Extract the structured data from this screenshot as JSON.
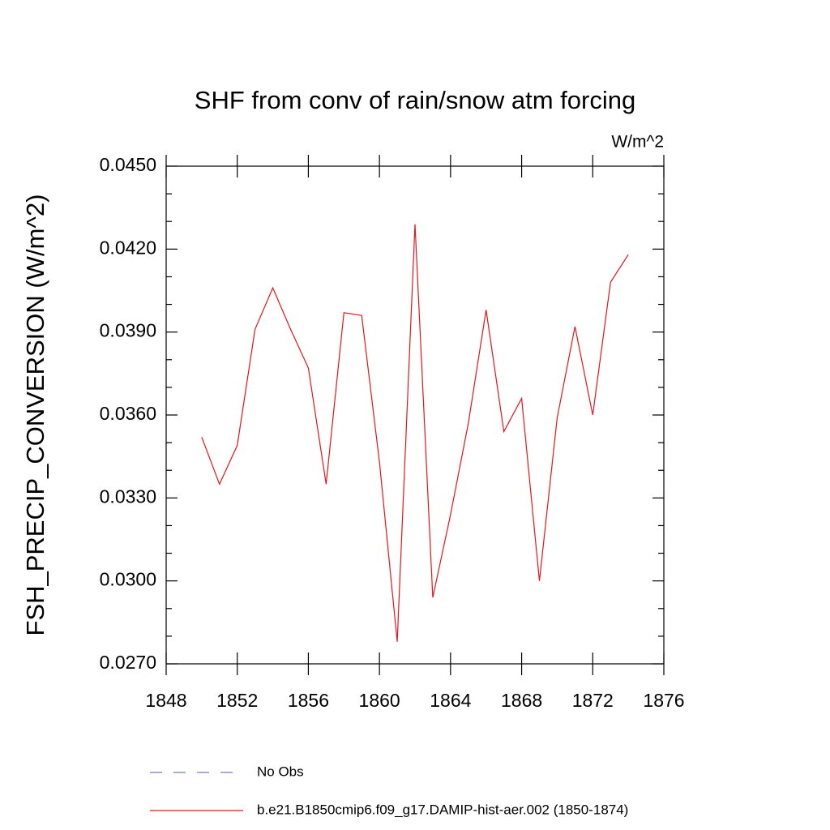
{
  "chart_data": {
    "type": "line",
    "title": "SHF from conv of rain/snow atm forcing",
    "units": "W/m^2",
    "y_label": "FSH_PRECIP_CONVERSION  (W/m^2)",
    "x": [
      1850,
      1851,
      1852,
      1853,
      1854,
      1855,
      1856,
      1857,
      1858,
      1859,
      1860,
      1861,
      1862,
      1863,
      1864,
      1865,
      1866,
      1867,
      1868,
      1869,
      1870,
      1871,
      1872,
      1873,
      1874
    ],
    "series": [
      {
        "name": "b.e21.B1850cmip6.f09_g17.DAMIP-hist-aer.002 (1850-1874)",
        "color": "#e8141c",
        "values": [
          0.0352,
          0.0335,
          0.0349,
          0.0391,
          0.0406,
          0.0391,
          0.0377,
          0.0335,
          0.0397,
          0.0396,
          0.0343,
          0.0278,
          0.0429,
          0.0294,
          0.0324,
          0.0357,
          0.0398,
          0.0354,
          0.0366,
          0.03,
          0.0359,
          0.0392,
          0.036,
          0.0408,
          0.0418
        ]
      }
    ],
    "reference_legend": {
      "name": "No Obs",
      "color": "#7b78c8",
      "dashed": true
    },
    "xlim": [
      1848,
      1876
    ],
    "xticks": [
      1848,
      1852,
      1856,
      1860,
      1864,
      1868,
      1872,
      1876
    ],
    "ylim": [
      0.027,
      0.045
    ],
    "yticks": [
      {
        "value": 0.027,
        "label": "0.0270"
      },
      {
        "value": 0.03,
        "label": "0.0300"
      },
      {
        "value": 0.033,
        "label": "0.0330"
      },
      {
        "value": 0.036,
        "label": "0.0360"
      },
      {
        "value": 0.039,
        "label": "0.0390"
      },
      {
        "value": 0.042,
        "label": "0.0420"
      },
      {
        "value": 0.045,
        "label": "0.0450"
      }
    ],
    "yminorticks": [
      0.028,
      0.029,
      0.031,
      0.032,
      0.034,
      0.035,
      0.037,
      0.038,
      0.04,
      0.041,
      0.043,
      0.044
    ]
  }
}
